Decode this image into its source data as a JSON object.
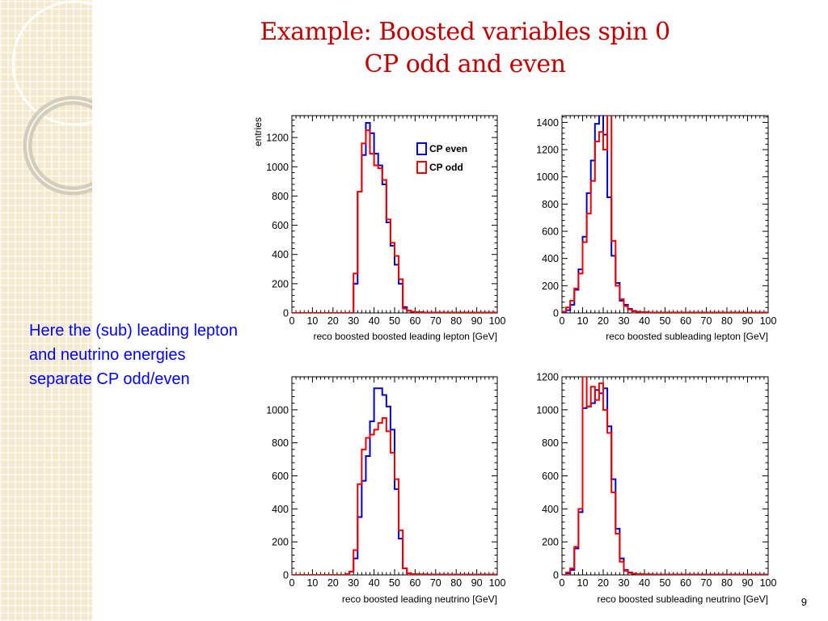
{
  "slide": {
    "title_line1": "Example: Boosted variables spin 0",
    "title_line2": "CP odd and even",
    "body_text": "Here the (sub) leading lepton and neutrino energies separate CP odd/even",
    "page_number": "9",
    "colors": {
      "title": "#c00000",
      "body": "#0000ff",
      "cp_even": "#0000cc",
      "cp_odd": "#ee0000"
    }
  },
  "chart_data": [
    {
      "type": "line",
      "step": true,
      "panel": "top-left",
      "xlabel": "reco boosted  boosted leading lepton [GeV]",
      "ylabel": "entries",
      "xlim": [
        0,
        100
      ],
      "ylim": [
        0,
        1350
      ],
      "xticks": [
        0,
        10,
        20,
        30,
        40,
        50,
        60,
        70,
        80,
        90,
        100
      ],
      "yticks": [
        0,
        200,
        400,
        600,
        800,
        1000,
        1200
      ],
      "legend": {
        "position": "top-right",
        "entries": [
          "CP even",
          "CP odd"
        ]
      },
      "bin_edges": [
        0,
        2,
        4,
        6,
        8,
        10,
        12,
        14,
        16,
        18,
        20,
        22,
        24,
        26,
        28,
        30,
        32,
        34,
        36,
        38,
        40,
        42,
        44,
        46,
        48,
        50,
        52,
        54,
        56,
        58,
        60,
        62,
        64,
        66,
        68,
        70,
        72,
        74,
        76,
        78,
        80,
        82,
        84,
        86,
        88,
        90,
        92,
        94,
        96,
        98,
        100
      ],
      "series": [
        {
          "name": "CP even",
          "values": [
            0,
            0,
            0,
            0,
            0,
            0,
            0,
            0,
            0,
            0,
            0,
            0,
            0,
            0,
            0,
            200,
            830,
            1080,
            1300,
            1230,
            1090,
            1010,
            880,
            620,
            460,
            330,
            200,
            40,
            15,
            8,
            5,
            5,
            3,
            3,
            2,
            2,
            2,
            2,
            2,
            2,
            2,
            2,
            2,
            2,
            2,
            2,
            2,
            2,
            2,
            2
          ]
        },
        {
          "name": "CP odd",
          "values": [
            0,
            0,
            0,
            0,
            0,
            0,
            0,
            0,
            0,
            0,
            0,
            0,
            0,
            0,
            0,
            270,
            830,
            1160,
            1250,
            1090,
            1010,
            990,
            910,
            640,
            480,
            390,
            230,
            30,
            15,
            8,
            5,
            5,
            3,
            3,
            2,
            2,
            2,
            2,
            2,
            2,
            2,
            2,
            2,
            2,
            2,
            2,
            2,
            2,
            2,
            2
          ]
        }
      ]
    },
    {
      "type": "line",
      "step": true,
      "panel": "top-right",
      "xlabel": "reco boosted subleading lepton [GeV]",
      "xlim": [
        0,
        100
      ],
      "ylim": [
        0,
        1450
      ],
      "xticks": [
        0,
        10,
        20,
        30,
        40,
        50,
        60,
        70,
        80,
        90,
        100
      ],
      "yticks": [
        0,
        200,
        400,
        600,
        800,
        1000,
        1200,
        1400
      ],
      "bin_edges": [
        0,
        2,
        4,
        6,
        8,
        10,
        12,
        14,
        16,
        18,
        20,
        22,
        24,
        26,
        28,
        30,
        32,
        34,
        36,
        38,
        40,
        42,
        44,
        46,
        48,
        50,
        52,
        54,
        56,
        58,
        60,
        62,
        64,
        66,
        68,
        70,
        72,
        74,
        76,
        78,
        80,
        82,
        84,
        86,
        88,
        90,
        92,
        94,
        96,
        98,
        100
      ],
      "series": [
        {
          "name": "CP even",
          "values": [
            5,
            20,
            60,
            170,
            320,
            560,
            880,
            1120,
            1390,
            1470,
            1310,
            850,
            420,
            220,
            90,
            60,
            30,
            15,
            8,
            5,
            5,
            3,
            3,
            2,
            2,
            2,
            2,
            2,
            2,
            2,
            2,
            2,
            2,
            2,
            2,
            2,
            2,
            2,
            2,
            2,
            2,
            2,
            2,
            2,
            2,
            2,
            2,
            2,
            2,
            2
          ]
        },
        {
          "name": "CP odd",
          "values": [
            10,
            40,
            90,
            180,
            290,
            520,
            730,
            970,
            1260,
            1330,
            1200,
            1520,
            530,
            200,
            100,
            50,
            25,
            12,
            8,
            5,
            5,
            3,
            3,
            2,
            2,
            2,
            2,
            2,
            2,
            2,
            2,
            2,
            2,
            2,
            2,
            2,
            2,
            2,
            2,
            2,
            2,
            2,
            2,
            2,
            2,
            2,
            2,
            2,
            2,
            2
          ]
        }
      ]
    },
    {
      "type": "line",
      "step": true,
      "panel": "bottom-left",
      "xlabel": "reco boosted leading neutrino [GeV]",
      "xlim": [
        0,
        100
      ],
      "ylim": [
        0,
        1200
      ],
      "xticks": [
        0,
        10,
        20,
        30,
        40,
        50,
        60,
        70,
        80,
        90,
        100
      ],
      "yticks": [
        0,
        200,
        400,
        600,
        800,
        1000
      ],
      "bin_edges": [
        0,
        2,
        4,
        6,
        8,
        10,
        12,
        14,
        16,
        18,
        20,
        22,
        24,
        26,
        28,
        30,
        32,
        34,
        36,
        38,
        40,
        42,
        44,
        46,
        48,
        50,
        52,
        54,
        56,
        58,
        60,
        62,
        64,
        66,
        68,
        70,
        72,
        74,
        76,
        78,
        80,
        82,
        84,
        86,
        88,
        90,
        92,
        94,
        96,
        98,
        100
      ],
      "series": [
        {
          "name": "CP even",
          "values": [
            0,
            0,
            0,
            0,
            0,
            0,
            0,
            0,
            0,
            0,
            0,
            0,
            0,
            5,
            20,
            100,
            350,
            570,
            720,
            930,
            1130,
            1130,
            1090,
            1020,
            880,
            520,
            220,
            40,
            10,
            5,
            5,
            3,
            3,
            2,
            2,
            2,
            2,
            2,
            2,
            2,
            2,
            2,
            2,
            2,
            2,
            2,
            2,
            2,
            2,
            2
          ]
        },
        {
          "name": "CP odd",
          "values": [
            0,
            0,
            0,
            0,
            0,
            0,
            0,
            0,
            0,
            0,
            0,
            0,
            0,
            5,
            20,
            150,
            550,
            760,
            830,
            850,
            880,
            920,
            950,
            870,
            740,
            580,
            270,
            40,
            10,
            5,
            5,
            3,
            3,
            2,
            2,
            2,
            2,
            2,
            2,
            2,
            2,
            2,
            2,
            2,
            2,
            2,
            2,
            2,
            2,
            2
          ]
        }
      ]
    },
    {
      "type": "line",
      "step": true,
      "panel": "bottom-right",
      "xlabel": "reco boosted subleading neutrino [GeV]",
      "xlim": [
        0,
        100
      ],
      "ylim": [
        0,
        1200
      ],
      "xticks": [
        0,
        10,
        20,
        30,
        40,
        50,
        60,
        70,
        80,
        90,
        100
      ],
      "yticks": [
        0,
        200,
        400,
        600,
        800,
        1000,
        1200
      ],
      "bin_edges": [
        0,
        2,
        4,
        6,
        8,
        10,
        12,
        14,
        16,
        18,
        20,
        22,
        24,
        26,
        28,
        30,
        32,
        34,
        36,
        38,
        40,
        42,
        44,
        46,
        48,
        50,
        52,
        54,
        56,
        58,
        60,
        62,
        64,
        66,
        68,
        70,
        72,
        74,
        76,
        78,
        80,
        82,
        84,
        86,
        88,
        90,
        92,
        94,
        96,
        98,
        100
      ],
      "series": [
        {
          "name": "CP even",
          "values": [
            0,
            10,
            30,
            160,
            380,
            1010,
            1020,
            1040,
            1120,
            1100,
            1130,
            900,
            580,
            280,
            100,
            30,
            15,
            8,
            5,
            5,
            3,
            3,
            2,
            2,
            2,
            2,
            2,
            2,
            2,
            2,
            2,
            2,
            2,
            2,
            2,
            2,
            2,
            2,
            2,
            2,
            2,
            2,
            2,
            2,
            2,
            2,
            2,
            2,
            2,
            2
          ]
        },
        {
          "name": "CP odd",
          "values": [
            0,
            15,
            40,
            170,
            400,
            1240,
            1020,
            1140,
            1060,
            1160,
            1000,
            860,
            500,
            250,
            80,
            25,
            12,
            8,
            5,
            5,
            3,
            3,
            2,
            2,
            2,
            2,
            2,
            2,
            2,
            2,
            2,
            2,
            2,
            2,
            2,
            2,
            2,
            2,
            2,
            2,
            2,
            2,
            2,
            2,
            2,
            2,
            2,
            2,
            2,
            2
          ]
        }
      ]
    }
  ]
}
